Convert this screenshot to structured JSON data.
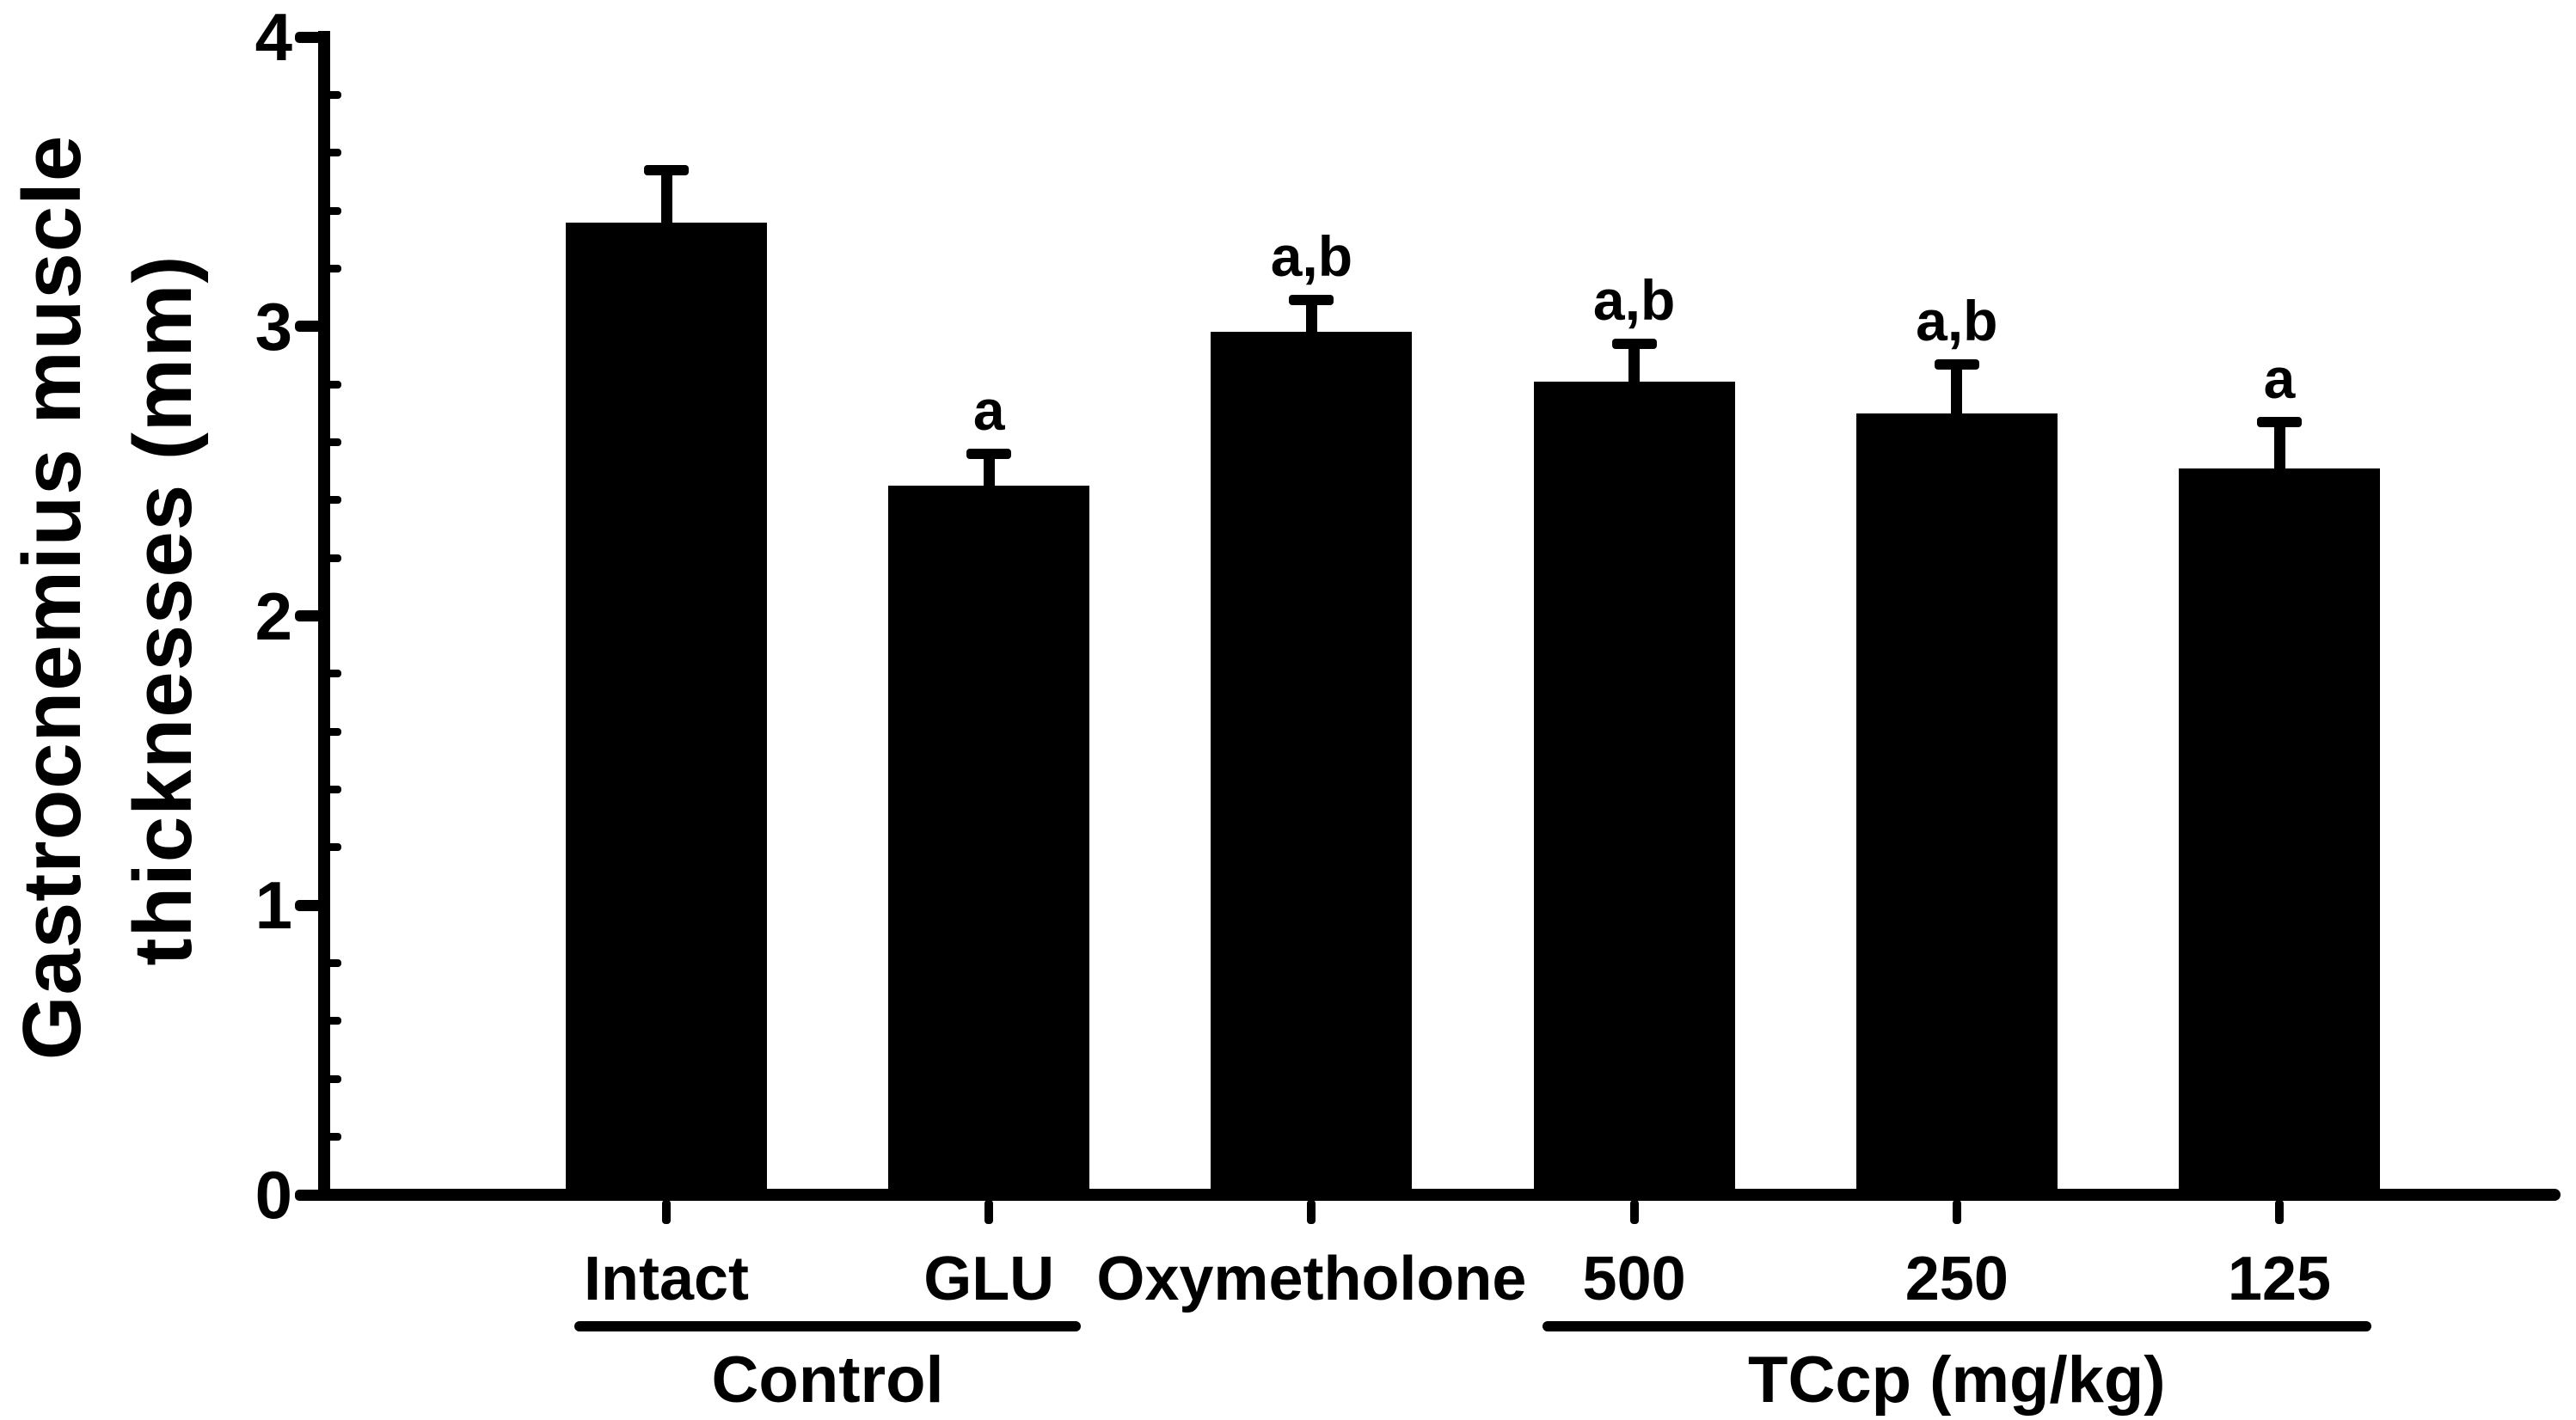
{
  "chart": {
    "y_title_line1": "Gastrocnemius muscle",
    "y_title_line2": "thicknesses (mm)",
    "background": "#ffffff",
    "bar_color": "#000000",
    "axis_color": "#000000",
    "text_color": "#000000"
  },
  "chart_data": {
    "type": "bar",
    "title": "",
    "xlabel": "",
    "ylabel": "Gastrocnemius muscle thicknesses (mm)",
    "categories": [
      "Intact",
      "GLU",
      "Oxymetholone",
      "500",
      "250",
      "125"
    ],
    "values": [
      3.36,
      2.45,
      2.98,
      2.81,
      2.7,
      2.51
    ],
    "errors": [
      0.18,
      0.11,
      0.11,
      0.13,
      0.17,
      0.16
    ],
    "error_bar_style": "upper-only-with-cap",
    "annotations": [
      "",
      "a",
      "a,b",
      "a,b",
      "a,b",
      "a"
    ],
    "ylim": [
      0,
      4
    ],
    "yticks": [
      0,
      1,
      2,
      3,
      4
    ],
    "minor_tick_step": 0.2,
    "grid": false,
    "legend": "none",
    "groups": [
      {
        "label": "Control",
        "from": 0,
        "to": 1
      },
      {
        "label": "TCcp (mg/kg)",
        "from": 3,
        "to": 5
      }
    ]
  }
}
